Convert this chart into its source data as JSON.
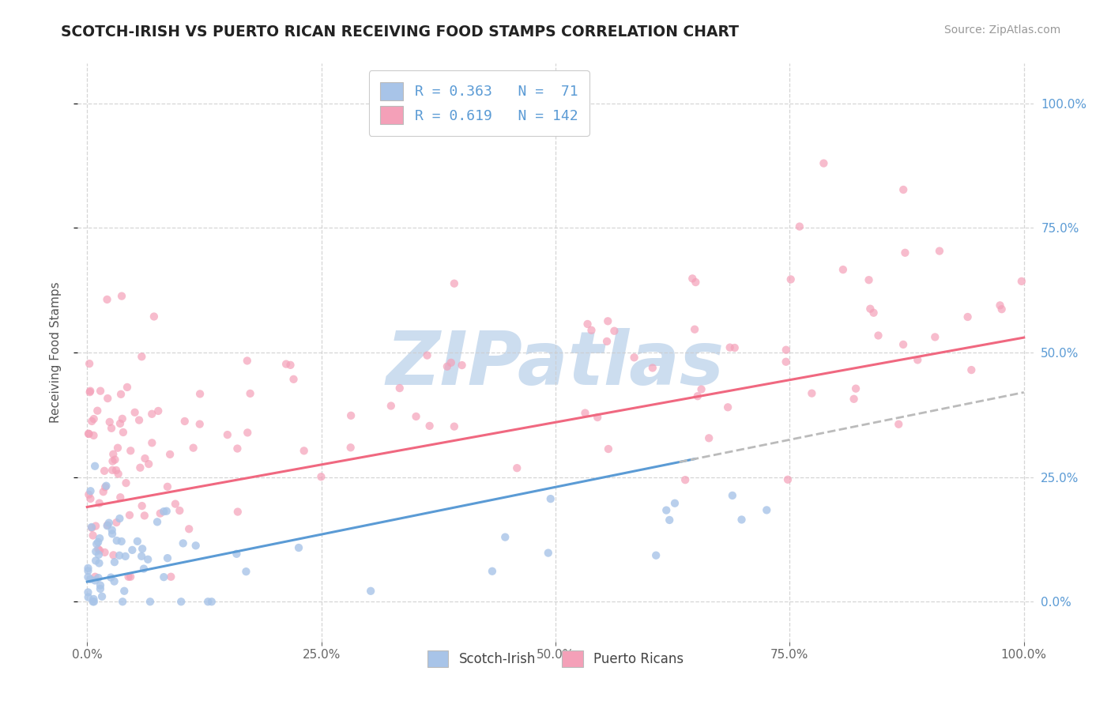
{
  "title": "SCOTCH-IRISH VS PUERTO RICAN RECEIVING FOOD STAMPS CORRELATION CHART",
  "source": "Source: ZipAtlas.com",
  "ylabel": "Receiving Food Stamps",
  "xlim": [
    0,
    1
  ],
  "ylim": [
    -0.08,
    1.08
  ],
  "blue_R": 0.363,
  "blue_N": 71,
  "pink_R": 0.619,
  "pink_N": 142,
  "blue_scatter_color": "#a8c4e8",
  "pink_scatter_color": "#f4a0b8",
  "blue_line_color": "#5b9bd5",
  "pink_line_color": "#f06880",
  "blue_dashed_color": "#bbbbbb",
  "watermark_color": "#ccddef",
  "background_color": "#ffffff",
  "grid_color": "#cccccc",
  "legend_label_blue": "Scotch-Irish",
  "legend_label_pink": "Puerto Ricans",
  "scatter_size": 55,
  "blue_scatter_alpha": 0.8,
  "pink_scatter_alpha": 0.7,
  "tick_color": "#666666",
  "right_tick_color": "#5b9bd5",
  "title_color": "#222222",
  "source_color": "#999999"
}
